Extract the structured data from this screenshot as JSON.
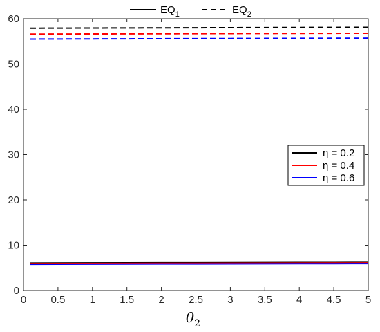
{
  "chart_data": {
    "type": "line",
    "xlabel": "θ",
    "xlabel_sub": "2",
    "ylabel": "",
    "xlim": [
      0,
      5
    ],
    "ylim": [
      0,
      60
    ],
    "x_ticks": [
      "0",
      "0.5",
      "1",
      "1.5",
      "2",
      "2.5",
      "3",
      "3.5",
      "4",
      "4.5",
      "5"
    ],
    "y_ticks": [
      "0",
      "10",
      "20",
      "30",
      "40",
      "50",
      "60"
    ],
    "grid": false,
    "style_legend": {
      "placement": "top",
      "entries": [
        {
          "label": "EQ",
          "sub": "1",
          "dash": "solid"
        },
        {
          "label": "EQ",
          "sub": "2",
          "dash": "dashed"
        }
      ]
    },
    "color_legend": {
      "placement": "right",
      "entries": [
        {
          "label": "η = 0.2",
          "color": "#000000"
        },
        {
          "label": "η = 0.4",
          "color": "#ff0000"
        },
        {
          "label": "η = 0.6",
          "color": "#0000ff"
        }
      ]
    },
    "x": [
      0.1,
      0.5,
      1.0,
      1.5,
      2.0,
      2.5,
      3.0,
      3.5,
      4.0,
      4.5,
      5.0
    ],
    "series": [
      {
        "name": "η = 0.2",
        "eq": "EQ1",
        "color": "#000000",
        "dash": "solid",
        "values": [
          6.05,
          6.07,
          6.09,
          6.1,
          6.12,
          6.13,
          6.15,
          6.16,
          6.18,
          6.19,
          6.2
        ]
      },
      {
        "name": "η = 0.4",
        "eq": "EQ1",
        "color": "#ff0000",
        "dash": "solid",
        "values": [
          5.92,
          5.94,
          5.96,
          5.97,
          5.99,
          6.0,
          6.02,
          6.03,
          6.05,
          6.06,
          6.08
        ]
      },
      {
        "name": "η = 0.6",
        "eq": "EQ1",
        "color": "#0000ff",
        "dash": "solid",
        "values": [
          5.78,
          5.8,
          5.82,
          5.83,
          5.85,
          5.86,
          5.88,
          5.89,
          5.91,
          5.92,
          5.94
        ]
      },
      {
        "name": "η = 0.2",
        "eq": "EQ2",
        "color": "#000000",
        "dash": "dashed",
        "values": [
          57.9,
          57.92,
          57.94,
          57.96,
          57.98,
          58.0,
          58.02,
          58.04,
          58.06,
          58.08,
          58.1
        ]
      },
      {
        "name": "η = 0.4",
        "eq": "EQ2",
        "color": "#ff0000",
        "dash": "dashed",
        "values": [
          56.6,
          56.62,
          56.64,
          56.66,
          56.68,
          56.7,
          56.72,
          56.74,
          56.76,
          56.78,
          56.8
        ]
      },
      {
        "name": "η = 0.6",
        "eq": "EQ2",
        "color": "#0000ff",
        "dash": "dashed",
        "values": [
          55.5,
          55.52,
          55.54,
          55.56,
          55.58,
          55.6,
          55.62,
          55.64,
          55.66,
          55.68,
          55.7
        ]
      }
    ]
  }
}
